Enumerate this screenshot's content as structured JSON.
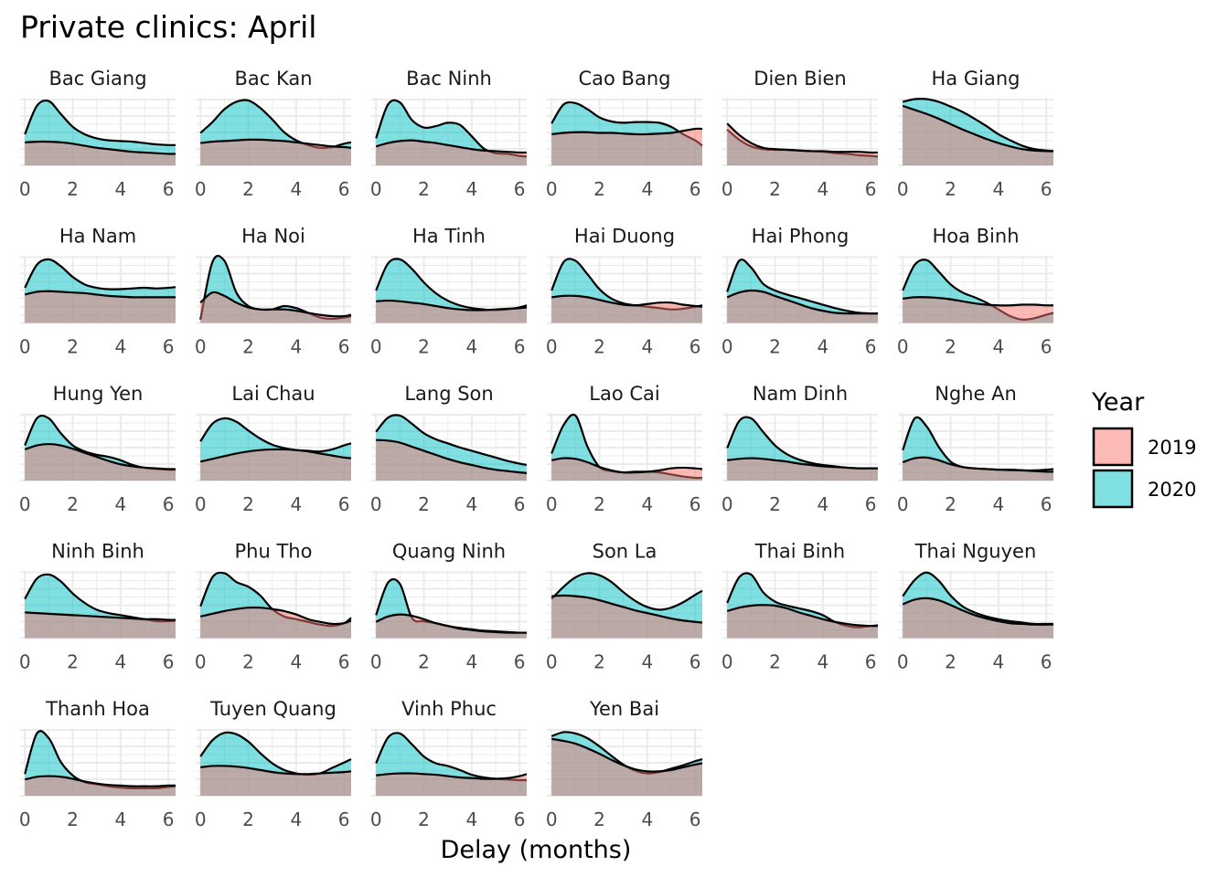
{
  "chart_data": {
    "type": "area",
    "title": "Private clinics: April",
    "xlabel": "Delay (months)",
    "ylabel": "",
    "xlim": [
      -0.2,
      6.3
    ],
    "x_ticks": [
      "0",
      "2",
      "4",
      "6"
    ],
    "grid": true,
    "legend": {
      "title": "Year",
      "placement": "right",
      "entries": [
        {
          "label": "2019",
          "color": "#F8766D"
        },
        {
          "label": "2020",
          "color": "#00BFC4"
        }
      ]
    },
    "x": [
      0,
      0.5,
      1,
      1.5,
      2,
      2.5,
      3,
      3.5,
      4,
      4.5,
      5,
      5.5,
      6,
      6.3
    ],
    "facets": [
      {
        "name": "Bac Giang",
        "y2019": [
          0.34,
          0.35,
          0.35,
          0.34,
          0.32,
          0.29,
          0.26,
          0.24,
          0.22,
          0.2,
          0.19,
          0.18,
          0.17,
          0.17
        ],
        "y2020": [
          0.46,
          0.88,
          0.95,
          0.76,
          0.57,
          0.46,
          0.4,
          0.37,
          0.36,
          0.35,
          0.33,
          0.31,
          0.3,
          0.3
        ]
      },
      {
        "name": "Bac Kan",
        "y2019": [
          0.33,
          0.35,
          0.36,
          0.37,
          0.38,
          0.38,
          0.37,
          0.36,
          0.34,
          0.32,
          0.3,
          0.28,
          0.27,
          0.26
        ],
        "y2020": [
          0.48,
          0.64,
          0.83,
          0.94,
          0.96,
          0.85,
          0.68,
          0.49,
          0.37,
          0.3,
          0.26,
          0.27,
          0.32,
          0.34
        ]
      },
      {
        "name": "Bac Ninh",
        "y2019": [
          0.28,
          0.33,
          0.36,
          0.37,
          0.35,
          0.33,
          0.3,
          0.27,
          0.24,
          0.22,
          0.21,
          0.2,
          0.19,
          0.19
        ],
        "y2020": [
          0.4,
          0.9,
          0.93,
          0.67,
          0.56,
          0.58,
          0.63,
          0.6,
          0.43,
          0.25,
          0.18,
          0.17,
          0.14,
          0.13
        ]
      },
      {
        "name": "Cao Bang",
        "y2019": [
          0.46,
          0.48,
          0.49,
          0.49,
          0.48,
          0.48,
          0.47,
          0.46,
          0.46,
          0.47,
          0.48,
          0.51,
          0.54,
          0.54
        ],
        "y2020": [
          0.62,
          0.9,
          0.92,
          0.83,
          0.71,
          0.65,
          0.63,
          0.64,
          0.64,
          0.63,
          0.57,
          0.46,
          0.37,
          0.29
        ]
      },
      {
        "name": "Dien Bien",
        "y2019": [
          0.62,
          0.45,
          0.33,
          0.26,
          0.24,
          0.23,
          0.22,
          0.21,
          0.21,
          0.2,
          0.2,
          0.2,
          0.19,
          0.19
        ],
        "y2020": [
          0.53,
          0.38,
          0.28,
          0.24,
          0.23,
          0.23,
          0.22,
          0.21,
          0.2,
          0.18,
          0.17,
          0.15,
          0.14,
          0.13
        ]
      },
      {
        "name": "Ha Giang",
        "y2019": [
          0.88,
          0.82,
          0.76,
          0.69,
          0.61,
          0.53,
          0.46,
          0.39,
          0.33,
          0.28,
          0.24,
          0.22,
          0.21,
          0.21
        ],
        "y2020": [
          0.94,
          0.98,
          0.98,
          0.94,
          0.87,
          0.79,
          0.69,
          0.58,
          0.46,
          0.37,
          0.29,
          0.24,
          0.22,
          0.21
        ]
      },
      {
        "name": "Ha Nam",
        "y2019": [
          0.42,
          0.46,
          0.47,
          0.46,
          0.45,
          0.44,
          0.42,
          0.4,
          0.39,
          0.38,
          0.38,
          0.38,
          0.38,
          0.38
        ],
        "y2020": [
          0.52,
          0.86,
          0.94,
          0.84,
          0.68,
          0.57,
          0.52,
          0.5,
          0.5,
          0.51,
          0.52,
          0.51,
          0.52,
          0.53
        ]
      },
      {
        "name": "Ha Noi",
        "y2019": [
          0.3,
          0.45,
          0.4,
          0.3,
          0.23,
          0.2,
          0.2,
          0.2,
          0.18,
          0.15,
          0.12,
          0.1,
          0.1,
          0.12
        ],
        "y2020": [
          0.05,
          0.9,
          0.92,
          0.45,
          0.25,
          0.2,
          0.2,
          0.25,
          0.22,
          0.15,
          0.08,
          0.06,
          0.08,
          0.1
        ]
      },
      {
        "name": "Ha Tinh",
        "y2019": [
          0.32,
          0.33,
          0.32,
          0.3,
          0.28,
          0.25,
          0.22,
          0.2,
          0.19,
          0.19,
          0.2,
          0.21,
          0.22,
          0.23
        ],
        "y2020": [
          0.48,
          0.88,
          0.94,
          0.8,
          0.6,
          0.44,
          0.33,
          0.26,
          0.22,
          0.2,
          0.19,
          0.2,
          0.23,
          0.26
        ]
      },
      {
        "name": "Hai Duong",
        "y2019": [
          0.38,
          0.4,
          0.4,
          0.38,
          0.34,
          0.3,
          0.27,
          0.26,
          0.28,
          0.3,
          0.3,
          0.27,
          0.25,
          0.24
        ],
        "y2020": [
          0.48,
          0.9,
          0.92,
          0.72,
          0.5,
          0.36,
          0.29,
          0.26,
          0.24,
          0.22,
          0.2,
          0.21,
          0.24,
          0.26
        ]
      },
      {
        "name": "Hai Phong",
        "y2019": [
          0.38,
          0.45,
          0.48,
          0.46,
          0.4,
          0.34,
          0.28,
          0.22,
          0.18,
          0.15,
          0.14,
          0.14,
          0.14,
          0.14
        ],
        "y2020": [
          0.46,
          0.92,
          0.82,
          0.58,
          0.48,
          0.42,
          0.37,
          0.32,
          0.27,
          0.22,
          0.18,
          0.15,
          0.14,
          0.14
        ]
      },
      {
        "name": "Hoa Binh",
        "y2019": [
          0.36,
          0.38,
          0.38,
          0.37,
          0.35,
          0.32,
          0.29,
          0.27,
          0.26,
          0.26,
          0.27,
          0.27,
          0.26,
          0.26
        ],
        "y2020": [
          0.48,
          0.86,
          0.93,
          0.76,
          0.57,
          0.45,
          0.38,
          0.3,
          0.2,
          0.1,
          0.05,
          0.07,
          0.12,
          0.15
        ]
      },
      {
        "name": "Hung Yen",
        "y2019": [
          0.46,
          0.52,
          0.54,
          0.52,
          0.47,
          0.41,
          0.35,
          0.29,
          0.24,
          0.21,
          0.19,
          0.18,
          0.17,
          0.17
        ],
        "y2020": [
          0.52,
          0.92,
          0.92,
          0.7,
          0.52,
          0.43,
          0.38,
          0.35,
          0.3,
          0.23,
          0.19,
          0.17,
          0.16,
          0.16
        ]
      },
      {
        "name": "Lai Chau",
        "y2019": [
          0.28,
          0.32,
          0.36,
          0.4,
          0.43,
          0.45,
          0.46,
          0.46,
          0.45,
          0.43,
          0.4,
          0.37,
          0.34,
          0.33
        ],
        "y2020": [
          0.58,
          0.84,
          0.92,
          0.87,
          0.74,
          0.62,
          0.53,
          0.48,
          0.45,
          0.44,
          0.43,
          0.46,
          0.52,
          0.55
        ]
      },
      {
        "name": "Lang Son",
        "y2019": [
          0.6,
          0.59,
          0.56,
          0.5,
          0.44,
          0.38,
          0.32,
          0.27,
          0.23,
          0.19,
          0.16,
          0.14,
          0.12,
          0.11
        ],
        "y2020": [
          0.72,
          0.93,
          0.96,
          0.84,
          0.7,
          0.61,
          0.55,
          0.49,
          0.44,
          0.39,
          0.34,
          0.29,
          0.25,
          0.23
        ]
      },
      {
        "name": "Lao Cai",
        "y2019": [
          0.3,
          0.33,
          0.32,
          0.27,
          0.2,
          0.15,
          0.12,
          0.12,
          0.13,
          0.15,
          0.18,
          0.19,
          0.18,
          0.17
        ],
        "y2020": [
          0.4,
          0.82,
          0.96,
          0.5,
          0.2,
          0.14,
          0.12,
          0.13,
          0.13,
          0.12,
          0.09,
          0.06,
          0.04,
          0.04
        ]
      },
      {
        "name": "Nam Dinh",
        "y2019": [
          0.3,
          0.32,
          0.33,
          0.32,
          0.3,
          0.28,
          0.25,
          0.23,
          0.21,
          0.2,
          0.19,
          0.18,
          0.18,
          0.18
        ],
        "y2020": [
          0.48,
          0.88,
          0.92,
          0.72,
          0.52,
          0.39,
          0.31,
          0.26,
          0.23,
          0.21,
          0.19,
          0.18,
          0.18,
          0.18
        ]
      },
      {
        "name": "Nghe An",
        "y2019": [
          0.27,
          0.33,
          0.34,
          0.3,
          0.24,
          0.2,
          0.18,
          0.17,
          0.16,
          0.16,
          0.15,
          0.14,
          0.13,
          0.13
        ],
        "y2020": [
          0.45,
          0.92,
          0.8,
          0.5,
          0.28,
          0.2,
          0.18,
          0.17,
          0.16,
          0.15,
          0.15,
          0.15,
          0.16,
          0.17
        ]
      },
      {
        "name": "Ninh Binh",
        "y2019": [
          0.38,
          0.37,
          0.36,
          0.35,
          0.34,
          0.33,
          0.32,
          0.31,
          0.3,
          0.29,
          0.28,
          0.28,
          0.27,
          0.27
        ],
        "y2020": [
          0.58,
          0.88,
          0.94,
          0.84,
          0.66,
          0.52,
          0.42,
          0.37,
          0.34,
          0.31,
          0.28,
          0.25,
          0.25,
          0.26
        ]
      },
      {
        "name": "Phu Tho",
        "y2019": [
          0.32,
          0.36,
          0.4,
          0.43,
          0.45,
          0.45,
          0.43,
          0.4,
          0.35,
          0.28,
          0.24,
          0.21,
          0.22,
          0.26
        ],
        "y2020": [
          0.47,
          0.9,
          0.96,
          0.83,
          0.76,
          0.63,
          0.43,
          0.32,
          0.28,
          0.24,
          0.2,
          0.18,
          0.22,
          0.3
        ]
      },
      {
        "name": "Quang Ninh",
        "y2019": [
          0.24,
          0.32,
          0.35,
          0.33,
          0.28,
          0.22,
          0.18,
          0.14,
          0.12,
          0.1,
          0.09,
          0.08,
          0.08,
          0.08
        ],
        "y2020": [
          0.34,
          0.82,
          0.8,
          0.3,
          0.25,
          0.22,
          0.18,
          0.15,
          0.13,
          0.11,
          0.1,
          0.09,
          0.08,
          0.08
        ]
      },
      {
        "name": "Son La",
        "y2019": [
          0.62,
          0.63,
          0.62,
          0.6,
          0.56,
          0.51,
          0.46,
          0.41,
          0.37,
          0.33,
          0.29,
          0.26,
          0.24,
          0.23
        ],
        "y2020": [
          0.58,
          0.76,
          0.9,
          0.96,
          0.93,
          0.83,
          0.68,
          0.55,
          0.46,
          0.42,
          0.45,
          0.53,
          0.64,
          0.7
        ]
      },
      {
        "name": "Thai Binh",
        "y2019": [
          0.4,
          0.45,
          0.48,
          0.49,
          0.48,
          0.44,
          0.38,
          0.33,
          0.28,
          0.24,
          0.21,
          0.19,
          0.18,
          0.18
        ],
        "y2020": [
          0.52,
          0.9,
          0.94,
          0.68,
          0.54,
          0.48,
          0.44,
          0.4,
          0.34,
          0.24,
          0.18,
          0.16,
          0.18,
          0.19
        ]
      },
      {
        "name": "Thai Nguyen",
        "y2019": [
          0.5,
          0.57,
          0.59,
          0.56,
          0.49,
          0.41,
          0.34,
          0.29,
          0.25,
          0.22,
          0.21,
          0.2,
          0.2,
          0.2
        ],
        "y2020": [
          0.62,
          0.86,
          0.97,
          0.85,
          0.63,
          0.47,
          0.38,
          0.32,
          0.28,
          0.25,
          0.23,
          0.21,
          0.21,
          0.21
        ]
      },
      {
        "name": "Thanh Hoa",
        "y2019": [
          0.24,
          0.28,
          0.29,
          0.28,
          0.25,
          0.21,
          0.18,
          0.16,
          0.15,
          0.14,
          0.14,
          0.14,
          0.15,
          0.15
        ],
        "y2020": [
          0.32,
          0.92,
          0.85,
          0.5,
          0.3,
          0.2,
          0.17,
          0.14,
          0.12,
          0.11,
          0.11,
          0.11,
          0.13,
          0.14
        ]
      },
      {
        "name": "Tuyen Quang",
        "y2019": [
          0.42,
          0.44,
          0.44,
          0.43,
          0.41,
          0.38,
          0.35,
          0.33,
          0.32,
          0.32,
          0.33,
          0.34,
          0.35,
          0.36
        ],
        "y2020": [
          0.58,
          0.82,
          0.93,
          0.91,
          0.8,
          0.63,
          0.48,
          0.38,
          0.33,
          0.31,
          0.33,
          0.41,
          0.49,
          0.54
        ]
      },
      {
        "name": "Vinh Phuc",
        "y2019": [
          0.3,
          0.32,
          0.33,
          0.33,
          0.32,
          0.31,
          0.29,
          0.27,
          0.26,
          0.25,
          0.25,
          0.26,
          0.29,
          0.32
        ],
        "y2020": [
          0.48,
          0.86,
          0.92,
          0.76,
          0.58,
          0.48,
          0.44,
          0.38,
          0.31,
          0.27,
          0.25,
          0.24,
          0.23,
          0.23
        ]
      },
      {
        "name": "Yen Bai",
        "y2019": [
          0.84,
          0.81,
          0.77,
          0.7,
          0.62,
          0.53,
          0.45,
          0.39,
          0.36,
          0.36,
          0.38,
          0.42,
          0.46,
          0.48
        ],
        "y2020": [
          0.88,
          0.94,
          0.92,
          0.85,
          0.73,
          0.59,
          0.46,
          0.37,
          0.33,
          0.35,
          0.4,
          0.45,
          0.51,
          0.54
        ]
      }
    ]
  }
}
